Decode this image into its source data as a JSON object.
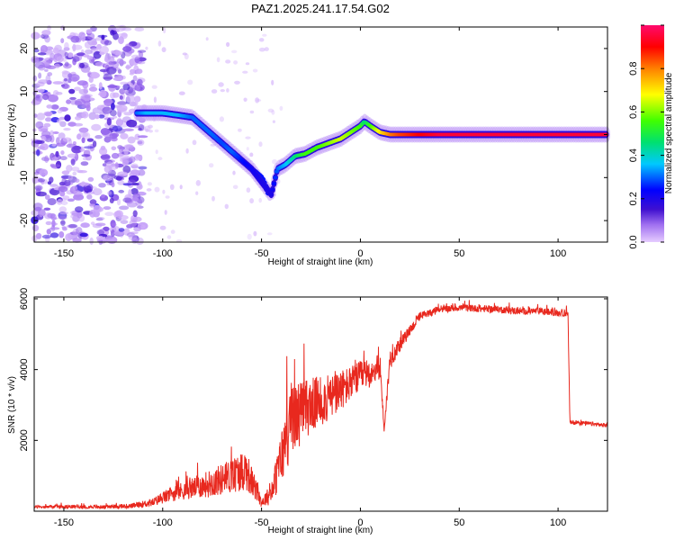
{
  "title": "PAZ1.2025.241.17.54.G02",
  "chart_data": [
    {
      "type": "heatmap",
      "name": "spectrogram",
      "xlabel": "Height of straight line (km)",
      "ylabel": "Frequency (Hz)",
      "xlim": [
        -165,
        125
      ],
      "ylim": [
        -25,
        25
      ],
      "xticks": [
        -150,
        -100,
        -50,
        0,
        50,
        100
      ],
      "yticks": [
        20,
        10,
        0,
        -10,
        -20
      ],
      "colorbar": {
        "label": "Normalized spectral amplitude",
        "range": [
          0,
          1
        ],
        "ticks": [
          0.0,
          0.2,
          0.4,
          0.6,
          0.8
        ]
      },
      "ridge": {
        "x": [
          -113,
          -108,
          -100,
          -92,
          -85,
          -80,
          -75,
          -70,
          -65,
          -60,
          -55,
          -50,
          -45,
          -42,
          -38,
          -33,
          -28,
          -22,
          -16,
          -10,
          -5,
          0,
          2,
          5,
          10,
          15,
          20,
          30,
          40,
          60,
          80,
          100,
          125
        ],
        "y": [
          5,
          5,
          5,
          4.5,
          4,
          2,
          0,
          -2,
          -4,
          -6,
          -8,
          -11,
          -14,
          -8,
          -7,
          -5,
          -4.5,
          -3,
          -2,
          -1,
          0.5,
          2,
          3,
          2,
          0.5,
          0,
          0,
          0,
          0,
          0,
          0,
          0,
          0
        ],
        "amplitude": [
          0.3,
          0.35,
          0.35,
          0.35,
          0.3,
          0.3,
          0.3,
          0.28,
          0.3,
          0.25,
          0.22,
          0.2,
          0.2,
          0.3,
          0.35,
          0.45,
          0.55,
          0.55,
          0.6,
          0.65,
          0.6,
          0.55,
          0.45,
          0.55,
          0.7,
          0.8,
          0.85,
          0.9,
          0.95,
          0.95,
          0.95,
          0.95,
          0.95
        ]
      },
      "branch": {
        "x": [
          -60,
          -55,
          -50,
          -46
        ],
        "y": [
          -6,
          -8,
          -10,
          -14
        ]
      },
      "noise_region_x": [
        -165,
        -110
      ]
    },
    {
      "type": "line",
      "name": "snr",
      "xlabel": "Height of straight line (km)",
      "ylabel": "SNR (10 * v/v)",
      "xlim": [
        -165,
        125
      ],
      "ylim": [
        0,
        6050
      ],
      "xticks": [
        -150,
        -100,
        -50,
        0,
        50,
        100
      ],
      "yticks": [
        2000,
        4000,
        6000
      ],
      "color": "#e8281e",
      "series": [
        {
          "name": "SNR",
          "x": [
            -165,
            -150,
            -130,
            -115,
            -105,
            -95,
            -85,
            -75,
            -65,
            -58,
            -50,
            -45,
            -40,
            -35,
            -30,
            -25,
            -20,
            -15,
            -10,
            -5,
            0,
            5,
            10,
            12,
            15,
            20,
            25,
            30,
            40,
            50,
            60,
            70,
            80,
            90,
            100,
            105,
            106,
            110,
            120,
            125
          ],
          "y": [
            120,
            130,
            120,
            150,
            250,
            500,
            650,
            800,
            1000,
            1200,
            250,
            500,
            1500,
            2600,
            2800,
            3000,
            3100,
            3200,
            3400,
            3600,
            3800,
            3900,
            4100,
            2300,
            4300,
            4700,
            5100,
            5500,
            5700,
            5750,
            5720,
            5700,
            5650,
            5650,
            5600,
            5600,
            2500,
            2500,
            2450,
            2420
          ],
          "noise_amplitude": [
            40,
            50,
            50,
            70,
            120,
            220,
            300,
            400,
            500,
            600,
            150,
            300,
            800,
            1100,
            900,
            800,
            700,
            650,
            600,
            500,
            450,
            400,
            350,
            100,
            300,
            200,
            150,
            120,
            100,
            100,
            100,
            100,
            100,
            100,
            100,
            100,
            60,
            60,
            60,
            60
          ]
        }
      ]
    }
  ]
}
